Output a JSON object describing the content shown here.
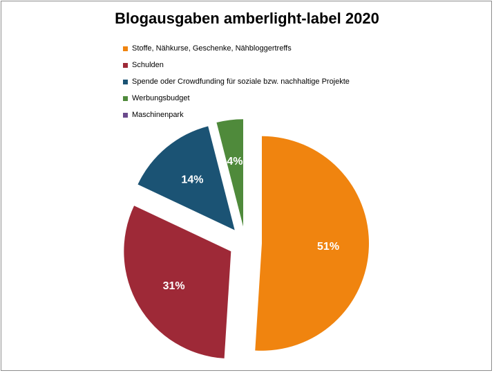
{
  "chart_data": {
    "type": "pie",
    "title": "Blogausgaben amberlight-label 2020",
    "legend_position": "top-left",
    "series": [
      {
        "name": "Stoffe, Nähkurse, Geschenke, Nähbloggertreffs",
        "value": 51,
        "label": "51%",
        "color": "#f0840f"
      },
      {
        "name": "Schulden",
        "value": 31,
        "label": "31%",
        "color": "#9e2937"
      },
      {
        "name": "Spende oder Crowdfunding für soziale bzw. nachhaltige Projekte",
        "value": 14,
        "label": "14%",
        "color": "#1b5374"
      },
      {
        "name": "Werbungsbudget",
        "value": 4,
        "label": "4%",
        "color": "#4f8a3b"
      },
      {
        "name": "Maschinenpark",
        "value": 0,
        "label": "",
        "color": "#6b4a8c"
      }
    ]
  }
}
